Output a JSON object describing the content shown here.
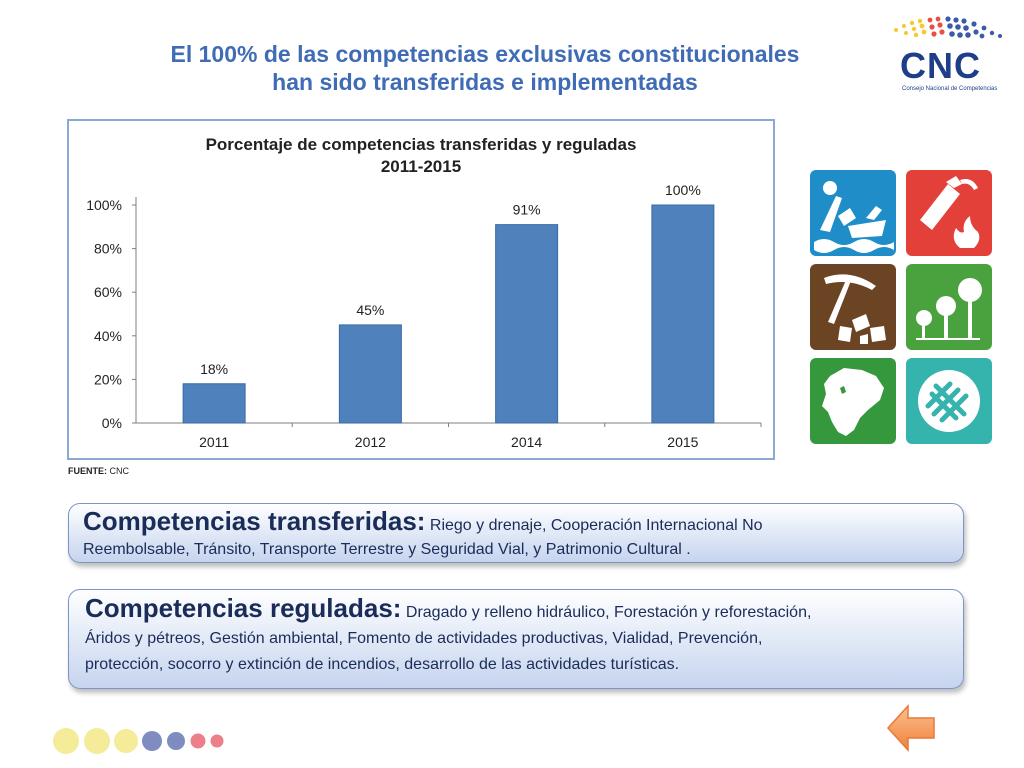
{
  "header": {
    "title_line1": "El 100% de las competencias exclusivas constitucionales",
    "title_line2": "han sido transferidas e implementadas",
    "logo_text": "CNC",
    "logo_subtitle": "Consejo Nacional de Competencias"
  },
  "chart_data": {
    "type": "bar",
    "title_line1": "Porcentaje de competencias transferidas y reguladas",
    "title_line2": "2011-2015",
    "categories": [
      "2011",
      "2012",
      "2014",
      "2015"
    ],
    "values": [
      18,
      45,
      91,
      100
    ],
    "labels": [
      "18%",
      "45%",
      "91%",
      "100%"
    ],
    "yticks": [
      "0%",
      "20%",
      "40%",
      "60%",
      "80%",
      "100%"
    ],
    "ylim": [
      0,
      100
    ],
    "xlabel": "",
    "ylabel": "",
    "bar_color": "#4f81bd",
    "grid": false
  },
  "source": {
    "label": "FUENTE:",
    "value": "CNC"
  },
  "icons": [
    {
      "name": "dredging-icon",
      "color": "#1f8dc8"
    },
    {
      "name": "fire-extinguisher-icon",
      "color": "#e3403a"
    },
    {
      "name": "mining-icon",
      "color": "#6b4424"
    },
    {
      "name": "forest-icon",
      "color": "#4aa23e"
    },
    {
      "name": "ecuador-map-icon",
      "color": "#35983c"
    },
    {
      "name": "cooperation-icon",
      "color": "#35b3ad"
    }
  ],
  "transferred": {
    "heading": "Competencias transferidas:",
    "text_line1": " Riego y drenaje, Cooperación Internacional No",
    "text_line2": "Reembolsable, Tránsito, Transporte Terrestre y Seguridad Vial, y Patrimonio Cultural ."
  },
  "regulated": {
    "heading": "Competencias reguladas:",
    "text_line1": " Dragado y relleno hidráulico, Forestación y reforestación,",
    "text_line2": "Áridos y pétreos, Gestión ambiental, Fomento de actividades productivas, Vialidad, Prevención,",
    "text_line3": "protección, socorro y extinción de incendios, desarrollo de las actividades turísticas."
  },
  "decoration": {
    "dot_colors": [
      "#f5ec9a",
      "#f5ec9a",
      "#f5ec9a",
      "#7f8cc0",
      "#7f8cc0",
      "#ec7f8a",
      "#ec7f8a"
    ],
    "arrow_color": "#f79a55"
  }
}
